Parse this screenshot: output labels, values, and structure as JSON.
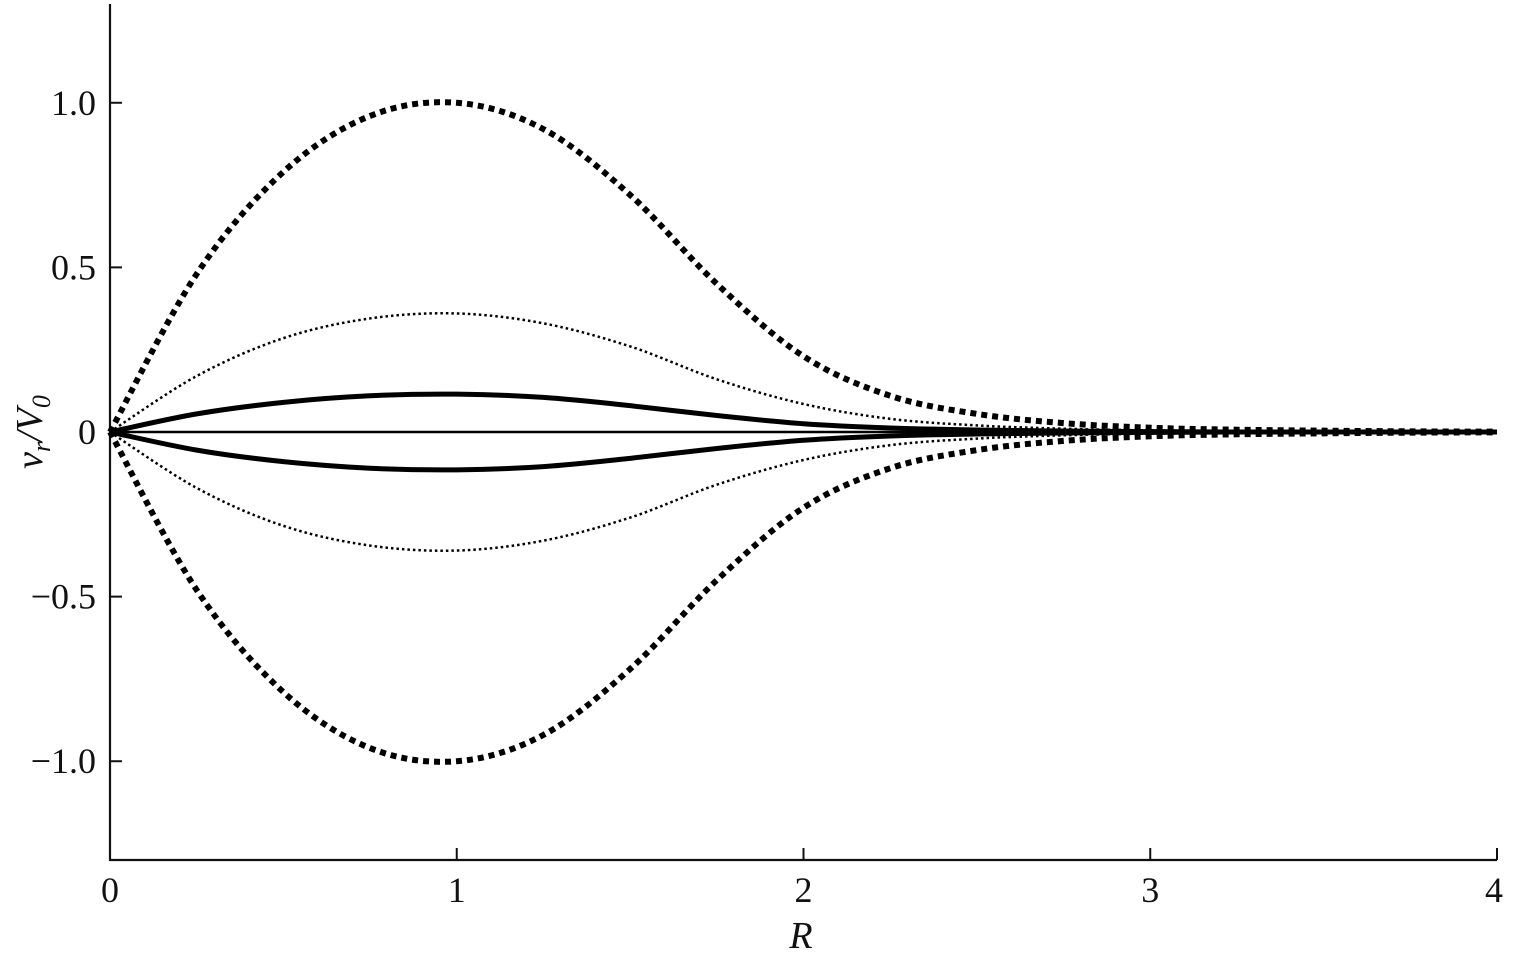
{
  "chart_data": {
    "type": "line",
    "title": "",
    "xlabel": "R",
    "ylabel": {
      "v": "v",
      "v_sub": "r",
      "sep": "/",
      "V": "V",
      "V_sub": "0"
    },
    "xlim": [
      0,
      4
    ],
    "ylim": [
      -1.3,
      1.3
    ],
    "x_ticks": [
      0,
      1,
      2,
      3,
      4
    ],
    "x_tick_labels": [
      "0",
      "1",
      "2",
      "3",
      "4"
    ],
    "y_ticks": [
      1.0,
      0.5,
      0,
      -0.5,
      -1.0
    ],
    "y_tick_labels": [
      "1.0",
      "0.5",
      "0",
      "−0.5",
      "−1.0"
    ],
    "grid": false,
    "legend": "none",
    "line_color": "#000000",
    "x": [
      0,
      0.25,
      0.5,
      0.75,
      1.0,
      1.25,
      1.5,
      1.75,
      2.0,
      2.25,
      2.5,
      2.75,
      3.0,
      3.25,
      3.5,
      3.75,
      4.0
    ],
    "series": [
      {
        "style": "thick-dotted",
        "values": [
          0,
          0.48,
          0.79,
          0.96,
          1.0,
          0.92,
          0.72,
          0.45,
          0.23,
          0.11,
          0.055,
          0.027,
          0.013,
          0.007,
          0.004,
          0.002,
          0.001
        ]
      },
      {
        "style": "thin-dotted",
        "values": [
          0,
          0.17,
          0.285,
          0.345,
          0.36,
          0.33,
          0.26,
          0.16,
          0.085,
          0.04,
          0.02,
          0.01,
          0.005,
          0.003,
          0.002,
          0.001,
          0.0
        ]
      },
      {
        "style": "thick-solid",
        "values": [
          0,
          0.055,
          0.09,
          0.11,
          0.115,
          0.105,
          0.08,
          0.05,
          0.025,
          0.012,
          0.006,
          0.003,
          0.001,
          0.0,
          0.0,
          0.0,
          0.0
        ]
      },
      {
        "style": "thin-solid",
        "values": [
          0,
          0,
          0,
          0,
          0,
          0,
          0,
          0,
          0,
          0,
          0,
          0,
          0,
          0,
          0,
          0,
          0
        ]
      },
      {
        "style": "thick-solid",
        "values": [
          0,
          -0.055,
          -0.09,
          -0.11,
          -0.115,
          -0.105,
          -0.08,
          -0.05,
          -0.025,
          -0.012,
          -0.006,
          -0.003,
          -0.001,
          0.0,
          0.0,
          0.0,
          0.0
        ]
      },
      {
        "style": "thin-dotted",
        "values": [
          0,
          -0.17,
          -0.285,
          -0.345,
          -0.36,
          -0.33,
          -0.26,
          -0.16,
          -0.085,
          -0.04,
          -0.02,
          -0.01,
          -0.005,
          -0.003,
          -0.002,
          -0.001,
          0.0
        ]
      },
      {
        "style": "thick-dotted",
        "values": [
          0,
          -0.48,
          -0.79,
          -0.96,
          -1.0,
          -0.92,
          -0.72,
          -0.45,
          -0.23,
          -0.11,
          -0.055,
          -0.027,
          -0.013,
          -0.007,
          -0.004,
          -0.002,
          -0.001
        ]
      }
    ]
  }
}
